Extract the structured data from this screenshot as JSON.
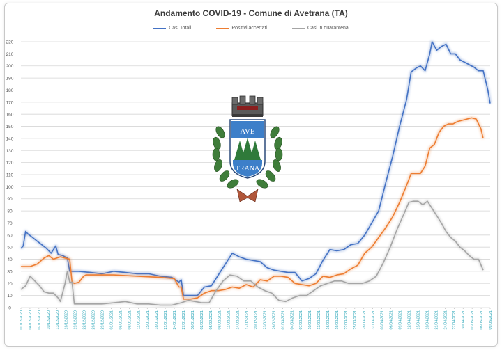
{
  "chart_data": {
    "type": "line",
    "title": "Andamento COVID-19 - Comune di Avetrana (TA)",
    "xlabel": "",
    "ylabel": "",
    "ylim": [
      0,
      220
    ],
    "yticks": [
      0,
      10,
      20,
      30,
      40,
      50,
      60,
      70,
      80,
      90,
      100,
      110,
      120,
      130,
      140,
      150,
      160,
      170,
      180,
      190,
      200,
      210,
      220
    ],
    "grid": true,
    "legend": "top-center",
    "x_tick_labels": [
      "01/12/2020",
      "04/12/2020",
      "07/12/2020",
      "10/12/2020",
      "13/12/2020",
      "16/12/2020",
      "19/12/2020",
      "22/12/2020",
      "26/12/2020",
      "29/12/2020",
      "01/01/2021",
      "05/01/2021",
      "08/01/2021",
      "11/01/2021",
      "15/01/2021",
      "18/01/2021",
      "21/01/2021",
      "24/01/2021",
      "27/01/2021",
      "30/01/2021",
      "02/02/2021",
      "05/02/2021",
      "08/02/2021",
      "11/02/2021",
      "14/02/2021",
      "17/02/2021",
      "20/02/2021",
      "23/02/2021",
      "26/02/2021",
      "01/03/2021",
      "04/03/2021",
      "07/03/2021",
      "10/03/2021",
      "13/03/2021",
      "16/03/2021",
      "19/03/2021",
      "22/03/2021",
      "25/03/2021",
      "28/03/2021",
      "31/03/2021",
      "03/04/2021",
      "06/04/2021",
      "09/04/2021",
      "12/04/2021",
      "15/04/2021",
      "18/04/2021",
      "21/04/2021",
      "24/04/2021",
      "27/04/2021",
      "30/04/2021",
      "03/05/2021",
      "06/05/2021",
      "09/05/2021"
    ],
    "series": [
      {
        "name": "Casi Totali",
        "color": "#4472c4",
        "points": [
          [
            0,
            49
          ],
          [
            1,
            51
          ],
          [
            2,
            63
          ],
          [
            3,
            61
          ],
          [
            5,
            58
          ],
          [
            7,
            55
          ],
          [
            9,
            52
          ],
          [
            11,
            49
          ],
          [
            13,
            45
          ],
          [
            15,
            51
          ],
          [
            16,
            44
          ],
          [
            18,
            43
          ],
          [
            20,
            41
          ],
          [
            21,
            30
          ],
          [
            25,
            30
          ],
          [
            30,
            29
          ],
          [
            35,
            28
          ],
          [
            40,
            30
          ],
          [
            45,
            29
          ],
          [
            50,
            28
          ],
          [
            55,
            28
          ],
          [
            60,
            26
          ],
          [
            65,
            25
          ],
          [
            68,
            21
          ],
          [
            69,
            23
          ],
          [
            70,
            10
          ],
          [
            73,
            10
          ],
          [
            76,
            10
          ],
          [
            79,
            17
          ],
          [
            82,
            18
          ],
          [
            85,
            27
          ],
          [
            88,
            36
          ],
          [
            91,
            45
          ],
          [
            94,
            42
          ],
          [
            97,
            40
          ],
          [
            100,
            39
          ],
          [
            103,
            38
          ],
          [
            106,
            33
          ],
          [
            109,
            31
          ],
          [
            112,
            30
          ],
          [
            115,
            29
          ],
          [
            118,
            29
          ],
          [
            121,
            22
          ],
          [
            124,
            24
          ],
          [
            127,
            28
          ],
          [
            130,
            39
          ],
          [
            133,
            48
          ],
          [
            136,
            47
          ],
          [
            139,
            48
          ],
          [
            142,
            52
          ],
          [
            145,
            53
          ],
          [
            148,
            60
          ],
          [
            151,
            70
          ],
          [
            154,
            80
          ],
          [
            157,
            103
          ],
          [
            160,
            125
          ],
          [
            163,
            150
          ],
          [
            166,
            172
          ],
          [
            168,
            195
          ],
          [
            170,
            198
          ],
          [
            172,
            200
          ],
          [
            174,
            196
          ],
          [
            176,
            210
          ],
          [
            177,
            220
          ],
          [
            179,
            213
          ],
          [
            181,
            216
          ],
          [
            183,
            218
          ],
          [
            185,
            210
          ],
          [
            187,
            210
          ],
          [
            189,
            205
          ],
          [
            191,
            203
          ],
          [
            193,
            201
          ],
          [
            195,
            199
          ],
          [
            197,
            196
          ],
          [
            199,
            196
          ],
          [
            201,
            180
          ],
          [
            202,
            169
          ]
        ]
      },
      {
        "name": "Positivi accertati",
        "color": "#ed7d31",
        "points": [
          [
            0,
            34
          ],
          [
            4,
            34
          ],
          [
            7,
            36
          ],
          [
            10,
            41
          ],
          [
            12,
            43
          ],
          [
            14,
            40
          ],
          [
            17,
            42
          ],
          [
            19,
            41
          ],
          [
            21,
            40
          ],
          [
            22,
            21
          ],
          [
            23,
            20
          ],
          [
            25,
            21
          ],
          [
            27,
            26
          ],
          [
            28,
            27
          ],
          [
            32,
            27
          ],
          [
            40,
            27
          ],
          [
            50,
            26
          ],
          [
            60,
            25
          ],
          [
            66,
            24
          ],
          [
            68,
            17
          ],
          [
            69,
            17
          ],
          [
            70,
            7
          ],
          [
            73,
            7
          ],
          [
            76,
            8
          ],
          [
            79,
            12
          ],
          [
            82,
            14
          ],
          [
            85,
            14
          ],
          [
            88,
            15
          ],
          [
            91,
            17
          ],
          [
            94,
            16
          ],
          [
            97,
            19
          ],
          [
            100,
            17
          ],
          [
            103,
            23
          ],
          [
            106,
            22
          ],
          [
            109,
            26
          ],
          [
            112,
            26
          ],
          [
            115,
            25
          ],
          [
            118,
            20
          ],
          [
            121,
            19
          ],
          [
            124,
            18
          ],
          [
            127,
            20
          ],
          [
            130,
            26
          ],
          [
            133,
            25
          ],
          [
            136,
            27
          ],
          [
            139,
            28
          ],
          [
            142,
            32
          ],
          [
            145,
            35
          ],
          [
            148,
            45
          ],
          [
            151,
            50
          ],
          [
            154,
            58
          ],
          [
            157,
            66
          ],
          [
            160,
            75
          ],
          [
            163,
            87
          ],
          [
            166,
            101
          ],
          [
            168,
            111
          ],
          [
            170,
            111
          ],
          [
            172,
            111
          ],
          [
            174,
            117
          ],
          [
            176,
            132
          ],
          [
            178,
            135
          ],
          [
            180,
            145
          ],
          [
            182,
            150
          ],
          [
            184,
            152
          ],
          [
            186,
            152
          ],
          [
            188,
            154
          ],
          [
            190,
            155
          ],
          [
            192,
            156
          ],
          [
            194,
            157
          ],
          [
            196,
            156
          ],
          [
            198,
            148
          ],
          [
            199,
            140
          ]
        ]
      },
      {
        "name": "Casi in quarantena",
        "color": "#a5a5a5",
        "points": [
          [
            0,
            15
          ],
          [
            2,
            18
          ],
          [
            4,
            26
          ],
          [
            6,
            22
          ],
          [
            8,
            18
          ],
          [
            10,
            13
          ],
          [
            12,
            12
          ],
          [
            14,
            12
          ],
          [
            16,
            8
          ],
          [
            17,
            5
          ],
          [
            19,
            20
          ],
          [
            20,
            30
          ],
          [
            21,
            21
          ],
          [
            22,
            21
          ],
          [
            23,
            3
          ],
          [
            26,
            3
          ],
          [
            30,
            3
          ],
          [
            35,
            3
          ],
          [
            40,
            4
          ],
          [
            45,
            5
          ],
          [
            50,
            3
          ],
          [
            55,
            3
          ],
          [
            60,
            2
          ],
          [
            65,
            2
          ],
          [
            69,
            4
          ],
          [
            72,
            6
          ],
          [
            75,
            5
          ],
          [
            78,
            4
          ],
          [
            81,
            4
          ],
          [
            84,
            14
          ],
          [
            87,
            22
          ],
          [
            90,
            27
          ],
          [
            93,
            26
          ],
          [
            96,
            22
          ],
          [
            99,
            22
          ],
          [
            102,
            17
          ],
          [
            105,
            14
          ],
          [
            108,
            12
          ],
          [
            111,
            6
          ],
          [
            114,
            5
          ],
          [
            117,
            8
          ],
          [
            120,
            10
          ],
          [
            123,
            10
          ],
          [
            126,
            14
          ],
          [
            129,
            18
          ],
          [
            132,
            20
          ],
          [
            135,
            22
          ],
          [
            138,
            22
          ],
          [
            141,
            20
          ],
          [
            144,
            20
          ],
          [
            147,
            20
          ],
          [
            150,
            22
          ],
          [
            153,
            26
          ],
          [
            156,
            37
          ],
          [
            159,
            50
          ],
          [
            162,
            65
          ],
          [
            165,
            78
          ],
          [
            167,
            87
          ],
          [
            169,
            88
          ],
          [
            171,
            88
          ],
          [
            173,
            85
          ],
          [
            175,
            88
          ],
          [
            177,
            82
          ],
          [
            179,
            76
          ],
          [
            181,
            70
          ],
          [
            183,
            63
          ],
          [
            185,
            58
          ],
          [
            187,
            55
          ],
          [
            189,
            50
          ],
          [
            191,
            47
          ],
          [
            193,
            43
          ],
          [
            195,
            40
          ],
          [
            197,
            40
          ],
          [
            199,
            31
          ]
        ]
      }
    ],
    "x_range": [
      0,
      202
    ]
  },
  "legend": {
    "items": [
      {
        "label": "Casi Totali",
        "color": "#4472c4"
      },
      {
        "label": "Positivi accertati",
        "color": "#ed7d31"
      },
      {
        "label": "Casi in quarantena",
        "color": "#a5a5a5"
      }
    ]
  },
  "emblem": {
    "top_word": "AVE",
    "bottom_word": "TRANA"
  }
}
